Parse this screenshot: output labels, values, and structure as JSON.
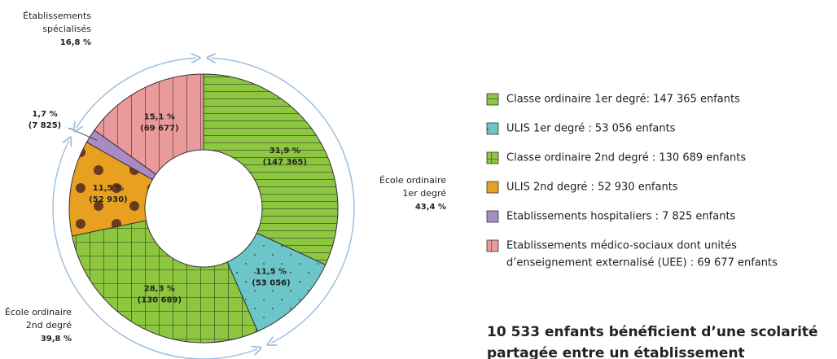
{
  "chart_data": {
    "type": "donut",
    "series": [
      {
        "name": "Classe ordinaire 1er degré",
        "color": "#8dc63f",
        "pattern": "hlines",
        "value": 31.9,
        "value_label": "31,9 %",
        "count": 147365,
        "count_label": "(147 365)",
        "legend": [
          "Classe ordinaire 1er degré: 147 365 enfants"
        ]
      },
      {
        "name": "ULIS 1er degré",
        "color": "#6cc5c9",
        "pattern": "dots",
        "value": 11.5,
        "value_label": "11,5 %",
        "count": 53056,
        "count_label": "(53 056)",
        "legend": [
          "ULIS 1er degré : 53 056 enfants"
        ]
      },
      {
        "name": "Classe ordinaire 2nd degré",
        "color": "#8dc63f",
        "pattern": "grid",
        "value": 28.3,
        "value_label": "28,3 %",
        "count": 130689,
        "count_label": "(130 689)",
        "legend": [
          "Classe ordinaire 2nd degré : 130 689 enfants"
        ]
      },
      {
        "name": "ULIS 2nd degré",
        "color": "#e8a020",
        "pattern": "bigdots",
        "value": 11.5,
        "value_label": "11,5 %",
        "count": 52930,
        "count_label": "(52 930)",
        "legend": [
          "ULIS 2nd degré : 52 930 enfants"
        ]
      },
      {
        "name": "Etablissements hospitaliers",
        "color": "#a98bc4",
        "pattern": "solid",
        "value": 1.7,
        "value_label": "1,7 %",
        "count": 7825,
        "count_label": "(7 825)",
        "legend": [
          "Etablissements hospitaliers : 7 825 enfants"
        ]
      },
      {
        "name": "Etablissements médico-sociaux",
        "color": "#ea9a9a",
        "pattern": "vlines",
        "value": 15.1,
        "value_label": "15,1 %",
        "count": 69677,
        "count_label": "(69 677)",
        "legend": [
          "Etablissements médico-sociaux dont unités",
          "d’enseignement externalisé (UEE) : 69 677 enfants"
        ]
      }
    ],
    "groups": [
      {
        "lines": [
          "École ordinaire",
          "1er degré"
        ],
        "value": 43.4,
        "value_label": "43,4 %"
      },
      {
        "lines": [
          "École ordinaire",
          "2nd degré"
        ],
        "value": 39.8,
        "value_label": "39,8 %"
      },
      {
        "lines": [
          "Établissements",
          "spécialisés"
        ],
        "value": 16.8,
        "value_label": "16,8 %"
      }
    ],
    "note": [
      "10 533 enfants bénéficient d’une scolarité",
      "partagée entre un établissement"
    ]
  }
}
